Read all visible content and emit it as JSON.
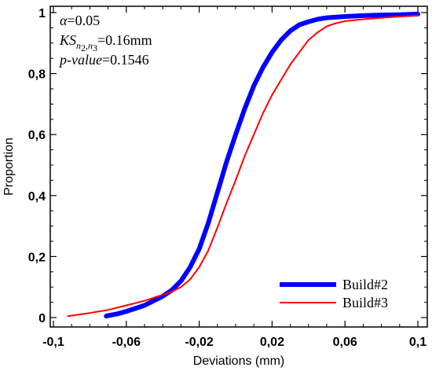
{
  "chart_data": {
    "type": "line",
    "title": "",
    "xlabel": "Deviations (mm)",
    "ylabel": "Proportion",
    "xlim": [
      -0.1,
      0.1
    ],
    "ylim": [
      0,
      1
    ],
    "xticks": [
      -0.1,
      -0.06,
      -0.02,
      0.02,
      0.06,
      0.1
    ],
    "xtick_labels": [
      "-0,1",
      "-0,06",
      "-0,02",
      "0,02",
      "0,06",
      "0,1"
    ],
    "yticks": [
      0,
      0.2,
      0.4,
      0.6,
      0.8,
      1
    ],
    "ytick_labels": [
      "0",
      "0,2",
      "0,4",
      "0,6",
      "0,8",
      "1"
    ],
    "grid": false,
    "legend_position": "bottom-right",
    "annotations": {
      "alpha_symbol": "α",
      "alpha_value": "=0.05",
      "ks_main": "KS",
      "ks_sub": "n",
      "ks_sub1": "2",
      "ks_sub_comma": ",",
      "ks_sub2": "n",
      "ks_sub3": "3",
      "ks_value": "=0.16mm",
      "pvalue_label": "p-value",
      "pvalue_value": "=0.1546"
    },
    "series": [
      {
        "name": "Build#2",
        "color": "#0000ff",
        "x": [
          -0.071,
          -0.065,
          -0.06,
          -0.055,
          -0.05,
          -0.045,
          -0.04,
          -0.035,
          -0.03,
          -0.025,
          -0.02,
          -0.015,
          -0.01,
          -0.005,
          0.0,
          0.005,
          0.01,
          0.015,
          0.02,
          0.025,
          0.03,
          0.035,
          0.04,
          0.045,
          0.05,
          0.06,
          0.07,
          0.08,
          0.09,
          0.1
        ],
        "y": [
          0.005,
          0.012,
          0.02,
          0.03,
          0.04,
          0.055,
          0.07,
          0.09,
          0.12,
          0.165,
          0.225,
          0.31,
          0.41,
          0.51,
          0.6,
          0.685,
          0.76,
          0.82,
          0.87,
          0.91,
          0.94,
          0.96,
          0.97,
          0.978,
          0.983,
          0.987,
          0.99,
          0.992,
          0.993,
          0.995
        ]
      },
      {
        "name": "Build#3",
        "color": "#ff0000",
        "x": [
          -0.092,
          -0.08,
          -0.07,
          -0.06,
          -0.05,
          -0.04,
          -0.035,
          -0.03,
          -0.025,
          -0.02,
          -0.015,
          -0.01,
          -0.005,
          0.0,
          0.005,
          0.01,
          0.015,
          0.02,
          0.025,
          0.03,
          0.035,
          0.04,
          0.045,
          0.05,
          0.055,
          0.06,
          0.07,
          0.08,
          0.09,
          0.1
        ],
        "y": [
          0.005,
          0.015,
          0.025,
          0.04,
          0.055,
          0.075,
          0.085,
          0.1,
          0.125,
          0.165,
          0.22,
          0.295,
          0.375,
          0.45,
          0.53,
          0.6,
          0.67,
          0.73,
          0.78,
          0.83,
          0.87,
          0.91,
          0.935,
          0.955,
          0.965,
          0.972,
          0.978,
          0.983,
          0.987,
          0.99
        ]
      }
    ]
  }
}
